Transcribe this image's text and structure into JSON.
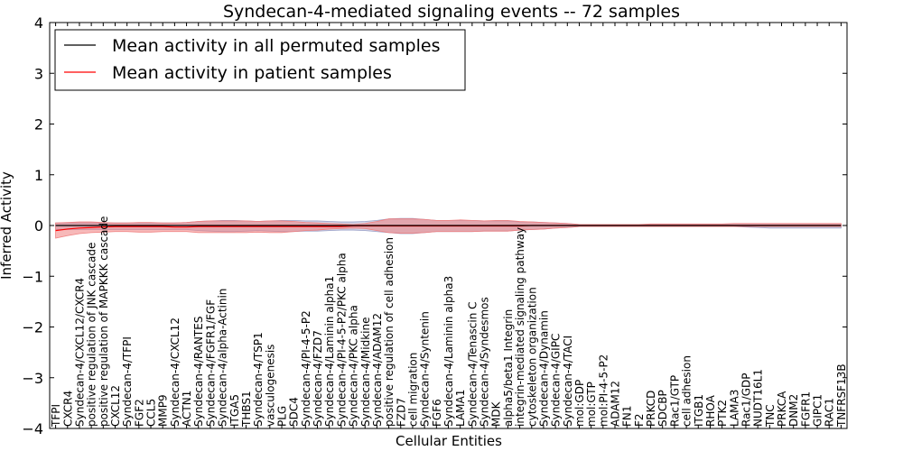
{
  "chart_data": {
    "type": "line",
    "title": "Syndecan-4-mediated signaling events -- 72 samples",
    "xlabel": "Cellular Entities",
    "ylabel": "Inferred Activity",
    "ylim": [
      -4,
      4
    ],
    "yticks": [
      -4,
      -3,
      -2,
      -1,
      0,
      1,
      2,
      3,
      4
    ],
    "ytick_labels": [
      "−4",
      "−3",
      "−2",
      "−1",
      "0",
      "1",
      "2",
      "3",
      "4"
    ],
    "grid": false,
    "legend_position": "top-left",
    "categories": [
      "TFPI",
      "CXCR4",
      "Syndecan-4/CXCL12/CXCR4",
      "positive regulation of JNK cascade",
      "positive regulation of MAPKKK cascade",
      "CXCL12",
      "Syndecan-4/TFPI",
      "FGF2",
      "CCL5",
      "MMP9",
      "Syndecan-4/CXCL12",
      "ACTN1",
      "Syndecan-4/RANTES",
      "Syndecan-4/FGFR1/FGF",
      "Syndecan-4/alpha-Actinin",
      "ITGA5",
      "THBS1",
      "Syndecan-4/TSP1",
      "vasculogenesis",
      "PLG",
      "SDC4",
      "Syndecan-4/PI-4-5-P2",
      "Syndecan-4/FZD7",
      "Syndecan-4/Laminin alpha1",
      "Syndecan-4/PI-4-5-P2/PKC alpha",
      "Syndecan-4/PKC alpha",
      "Syndecan-4/Midkine",
      "Syndecan-4/ADAM12",
      "positive regulation of cell adhesion",
      "FZD7",
      "cell migration",
      "Syndecan-4/Syntenin",
      "FGF6",
      "Syndecan-4/Laminin alpha3",
      "LAMA1",
      "Syndecan-4/Tenascin C",
      "Syndecan-4/Syndesmos",
      "MDK",
      "alpha5/beta1 Integrin",
      "integrin-mediated signaling pathway",
      "cytoskeleton organization",
      "Syndecan-4/Dynamin",
      "Syndecan-4/GIPC",
      "Syndecan-4/TACI",
      "mol:GDP",
      "mol:GTP",
      "mol:PI-4-5-P2",
      "ADAM12",
      "FN1",
      "F2",
      "PRKCD",
      "SDCBP",
      "Rac1/GTP",
      "cell adhesion",
      "ITGB1",
      "RHOA",
      "PTK2",
      "LAMA3",
      "Rac1/GDP",
      "NUDT16L1",
      "TNC",
      "PRKCA",
      "DNM2",
      "FGFR1",
      "GIPC1",
      "RAC1",
      "TNFRSF13B"
    ],
    "series": [
      {
        "name": "Mean activity in all permuted samples",
        "color": "#000000",
        "values": [
          0.0,
          0.0,
          0.0,
          0.0,
          0.0,
          0.0,
          0.0,
          0.0,
          0.0,
          0.0,
          0.0,
          0.0,
          0.0,
          0.0,
          0.0,
          0.0,
          0.0,
          0.0,
          0.0,
          0.0,
          0.0,
          0.0,
          0.0,
          0.0,
          0.0,
          0.0,
          0.0,
          0.0,
          0.0,
          0.0,
          0.0,
          0.0,
          0.0,
          0.0,
          0.0,
          0.0,
          0.0,
          0.0,
          0.0,
          0.0,
          0.0,
          0.0,
          0.0,
          0.0,
          0.0,
          0.0,
          0.0,
          0.0,
          0.0,
          0.0,
          0.0,
          0.0,
          0.0,
          0.0,
          0.0,
          0.0,
          0.0,
          0.0,
          0.0,
          0.0,
          0.0,
          0.0,
          0.0,
          0.0,
          0.0,
          0.0,
          0.0
        ]
      },
      {
        "name": "Mean activity in patient samples",
        "color": "#ff0000",
        "values": [
          -0.1,
          -0.07,
          -0.05,
          -0.04,
          -0.03,
          -0.02,
          -0.02,
          -0.02,
          -0.02,
          -0.02,
          -0.03,
          -0.03,
          -0.02,
          -0.02,
          -0.02,
          -0.02,
          -0.02,
          -0.02,
          -0.02,
          -0.02,
          -0.02,
          -0.02,
          -0.02,
          -0.02,
          -0.02,
          -0.01,
          -0.01,
          -0.01,
          -0.01,
          -0.01,
          -0.01,
          -0.01,
          -0.01,
          -0.01,
          -0.01,
          -0.01,
          -0.01,
          -0.01,
          -0.01,
          -0.01,
          0.0,
          0.0,
          0.0,
          0.0,
          0.0,
          0.0,
          0.0,
          0.0,
          0.0,
          0.0,
          0.0,
          0.0,
          0.0,
          0.0,
          0.0,
          0.0,
          0.0,
          0.0,
          0.0,
          0.0,
          0.0,
          0.0,
          0.0,
          0.0,
          0.0,
          0.0,
          0.0
        ]
      }
    ],
    "bands": [
      {
        "name": "permuted spread",
        "color": "#9aa0c8",
        "upper": [
          0.05,
          0.05,
          0.05,
          0.05,
          0.05,
          0.05,
          0.05,
          0.05,
          0.05,
          0.05,
          0.05,
          0.06,
          0.08,
          0.09,
          0.1,
          0.1,
          0.09,
          0.08,
          0.09,
          0.1,
          0.1,
          0.09,
          0.09,
          0.08,
          0.07,
          0.07,
          0.08,
          0.1,
          0.13,
          0.14,
          0.14,
          0.12,
          0.1,
          0.1,
          0.1,
          0.1,
          0.09,
          0.09,
          0.09,
          0.07,
          0.07,
          0.06,
          0.05,
          0.04,
          0.02,
          0.02,
          0.02,
          0.02,
          0.02,
          0.02,
          0.02,
          0.02,
          0.02,
          0.02,
          0.02,
          0.02,
          0.02,
          0.02,
          0.02,
          0.02,
          0.02,
          0.02,
          0.02,
          0.02,
          0.02,
          0.02,
          0.02
        ],
        "lower": [
          -0.08,
          -0.08,
          -0.08,
          -0.08,
          -0.08,
          -0.08,
          -0.08,
          -0.08,
          -0.08,
          -0.08,
          -0.08,
          -0.08,
          -0.1,
          -0.11,
          -0.12,
          -0.12,
          -0.11,
          -0.1,
          -0.11,
          -0.12,
          -0.12,
          -0.11,
          -0.11,
          -0.1,
          -0.09,
          -0.09,
          -0.1,
          -0.12,
          -0.14,
          -0.16,
          -0.16,
          -0.14,
          -0.12,
          -0.12,
          -0.12,
          -0.12,
          -0.11,
          -0.11,
          -0.11,
          -0.09,
          -0.08,
          -0.07,
          -0.05,
          -0.04,
          -0.02,
          -0.02,
          -0.02,
          -0.02,
          -0.02,
          -0.02,
          -0.02,
          -0.02,
          -0.02,
          -0.02,
          -0.02,
          -0.02,
          -0.02,
          -0.02,
          -0.03,
          -0.04,
          -0.05,
          -0.05,
          -0.05,
          -0.05,
          -0.05,
          -0.05,
          -0.05
        ]
      },
      {
        "name": "patient spread",
        "color": "#f08080",
        "upper": [
          0.05,
          0.06,
          0.07,
          0.07,
          0.06,
          0.05,
          0.05,
          0.06,
          0.06,
          0.05,
          0.05,
          0.06,
          0.08,
          0.09,
          0.09,
          0.09,
          0.09,
          0.08,
          0.09,
          0.09,
          0.08,
          0.06,
          0.05,
          0.04,
          0.03,
          0.02,
          0.04,
          0.08,
          0.13,
          0.13,
          0.13,
          0.12,
          0.1,
          0.1,
          0.11,
          0.1,
          0.09,
          0.1,
          0.1,
          0.08,
          0.07,
          0.06,
          0.05,
          0.04,
          0.02,
          0.02,
          0.02,
          0.02,
          0.02,
          0.02,
          0.03,
          0.03,
          0.03,
          0.03,
          0.03,
          0.03,
          0.03,
          0.04,
          0.04,
          0.04,
          0.04,
          0.04,
          0.04,
          0.04,
          0.04,
          0.04,
          0.04
        ],
        "lower": [
          -0.25,
          -0.2,
          -0.16,
          -0.14,
          -0.13,
          -0.12,
          -0.12,
          -0.13,
          -0.13,
          -0.12,
          -0.12,
          -0.12,
          -0.14,
          -0.14,
          -0.14,
          -0.14,
          -0.14,
          -0.13,
          -0.14,
          -0.14,
          -0.12,
          -0.1,
          -0.09,
          -0.07,
          -0.06,
          -0.05,
          -0.06,
          -0.1,
          -0.14,
          -0.15,
          -0.15,
          -0.14,
          -0.12,
          -0.12,
          -0.12,
          -0.12,
          -0.11,
          -0.11,
          -0.11,
          -0.09,
          -0.08,
          -0.07,
          -0.05,
          -0.04,
          -0.02,
          -0.02,
          -0.02,
          -0.02,
          -0.02,
          -0.02,
          -0.02,
          -0.02,
          -0.02,
          -0.02,
          -0.02,
          -0.02,
          -0.02,
          -0.02,
          -0.02,
          -0.02,
          -0.02,
          -0.02,
          -0.02,
          -0.02,
          -0.02,
          -0.02,
          -0.02
        ]
      }
    ]
  }
}
